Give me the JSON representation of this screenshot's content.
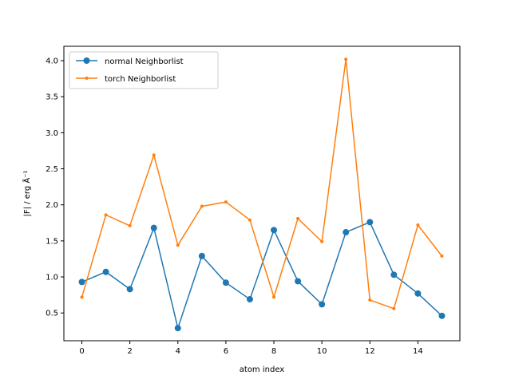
{
  "chart_data": {
    "type": "line",
    "title": "",
    "xlabel": "atom index",
    "ylabel": "|F| / erg Å⁻¹",
    "xlim": [
      -0.75,
      15.75
    ],
    "ylim": [
      0.115,
      4.2
    ],
    "xticks": [
      0,
      2,
      4,
      6,
      8,
      10,
      12,
      14
    ],
    "yticks": [
      0.5,
      1.0,
      1.5,
      2.0,
      2.5,
      3.0,
      3.5,
      4.0
    ],
    "xtick_labels": [
      "0",
      "2",
      "4",
      "6",
      "8",
      "10",
      "12",
      "14"
    ],
    "ytick_labels": [
      "0.5",
      "1.0",
      "1.5",
      "2.0",
      "2.5",
      "3.0",
      "3.5",
      "4.0"
    ],
    "grid": false,
    "legend_position": "upper left",
    "x": [
      0,
      1,
      2,
      3,
      4,
      5,
      6,
      7,
      8,
      9,
      10,
      11,
      12,
      13,
      14,
      15
    ],
    "series": [
      {
        "name": "normal Neighborlist",
        "color": "#1f77b4",
        "marker": "circle",
        "values": [
          0.93,
          1.07,
          0.83,
          1.68,
          0.29,
          1.29,
          0.92,
          0.69,
          1.65,
          0.94,
          0.62,
          1.62,
          1.76,
          1.03,
          0.77,
          0.46
        ]
      },
      {
        "name": "torch Neighborlist",
        "color": "#ff7f0e",
        "marker": "point",
        "values": [
          0.72,
          1.86,
          1.71,
          2.69,
          1.44,
          1.98,
          2.04,
          1.79,
          0.72,
          1.81,
          1.49,
          4.02,
          0.68,
          0.56,
          1.72,
          1.29
        ]
      }
    ]
  }
}
